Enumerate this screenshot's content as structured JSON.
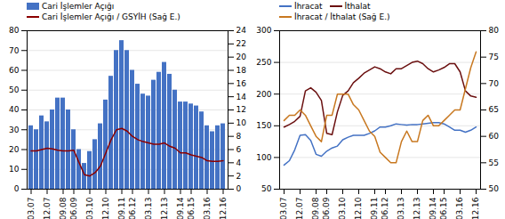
{
  "chart_data": [
    {
      "type": "bar",
      "categories": [
        "03.07",
        null,
        null,
        "12.07",
        null,
        null,
        "09.08",
        null,
        "06.09",
        null,
        null,
        "03.10",
        null,
        null,
        "12.10",
        null,
        null,
        "09.11",
        null,
        "06.12",
        null,
        null,
        "03.13",
        null,
        null,
        "12.13",
        null,
        null,
        "09.14",
        null,
        "06.15",
        null,
        null,
        "03.16",
        null,
        null,
        "12.16"
      ],
      "ylim": [
        0,
        80
      ],
      "yticks": [
        0,
        10,
        20,
        30,
        40,
        50,
        60,
        70,
        80
      ],
      "y2lim": [
        0,
        24
      ],
      "y2ticks": [
        0,
        2,
        4,
        6,
        8,
        10,
        12,
        14,
        16,
        18,
        20,
        22,
        24
      ],
      "grid": true,
      "legend": "upper left",
      "series": [
        {
          "name": "Cari İşlemler Açığı",
          "type": "bar",
          "color": "#4472C4",
          "values": [
            32,
            30,
            37,
            34,
            40,
            46,
            46,
            40,
            30,
            20,
            13,
            19,
            25,
            33,
            45,
            57,
            70,
            75,
            70,
            60,
            53,
            48,
            47,
            55,
            59,
            64,
            58,
            50,
            44,
            44,
            43,
            42,
            39,
            32,
            29,
            32,
            33
          ]
        },
        {
          "name": "Cari İşlemler Açığı / GSYİH (Sağ E.)",
          "type": "line",
          "axis": "y2",
          "color": "#8B0000",
          "values": [
            5.8,
            5.8,
            6.0,
            6.2,
            6.1,
            5.9,
            5.8,
            5.8,
            5.9,
            4.0,
            2.2,
            2.0,
            2.5,
            3.5,
            5.5,
            7.5,
            9.0,
            9.2,
            8.8,
            8.0,
            7.5,
            7.2,
            7.0,
            6.8,
            6.8,
            7.0,
            6.5,
            6.2,
            5.5,
            5.5,
            5.2,
            5.0,
            4.8,
            4.3,
            4.2,
            4.2,
            4.3
          ]
        }
      ]
    },
    {
      "type": "line",
      "categories": [
        "03.07",
        null,
        null,
        "12.07",
        null,
        null,
        "09.08",
        null,
        "06.09",
        null,
        null,
        "03.10",
        null,
        null,
        "12.10",
        null,
        null,
        "09.11",
        null,
        "06.12",
        null,
        null,
        "03.13",
        null,
        null,
        "12.13",
        null,
        null,
        "09.14",
        null,
        "06.15",
        null,
        null,
        "03.16",
        null,
        null,
        "12.16"
      ],
      "ylim": [
        50,
        300
      ],
      "yticks": [
        50,
        100,
        150,
        200,
        250,
        300
      ],
      "y2lim": [
        50,
        80
      ],
      "y2ticks": [
        50,
        55,
        60,
        65,
        70,
        75,
        80
      ],
      "grid": true,
      "legend": "upper left",
      "series": [
        {
          "name": "İhracat",
          "type": "line",
          "color": "#4472C4",
          "values": [
            88,
            95,
            112,
            135,
            136,
            127,
            105,
            102,
            110,
            115,
            118,
            128,
            132,
            135,
            135,
            135,
            138,
            142,
            148,
            148,
            150,
            153,
            152,
            151,
            152,
            152,
            153,
            154,
            155,
            155,
            153,
            148,
            143,
            143,
            140,
            143,
            148
          ]
        },
        {
          "name": "İthalat",
          "type": "line",
          "color": "#6B1010",
          "values": [
            148,
            152,
            157,
            165,
            205,
            210,
            203,
            190,
            138,
            136,
            172,
            198,
            205,
            218,
            225,
            233,
            238,
            243,
            240,
            235,
            232,
            240,
            240,
            245,
            250,
            252,
            248,
            240,
            235,
            238,
            242,
            248,
            248,
            235,
            205,
            197,
            195
          ]
        },
        {
          "name": "İhracat / İthalat (Sağ E.)",
          "type": "line",
          "axis": "y2",
          "color": "#C87820",
          "values": [
            63,
            64,
            64,
            65,
            64,
            62,
            60,
            59,
            64,
            64,
            68,
            68,
            68,
            66,
            65,
            63,
            61,
            60,
            57,
            56,
            55,
            55,
            59,
            61,
            59,
            59,
            63,
            64,
            62,
            62,
            63,
            64,
            65,
            65,
            69,
            73,
            76
          ]
        }
      ]
    }
  ]
}
